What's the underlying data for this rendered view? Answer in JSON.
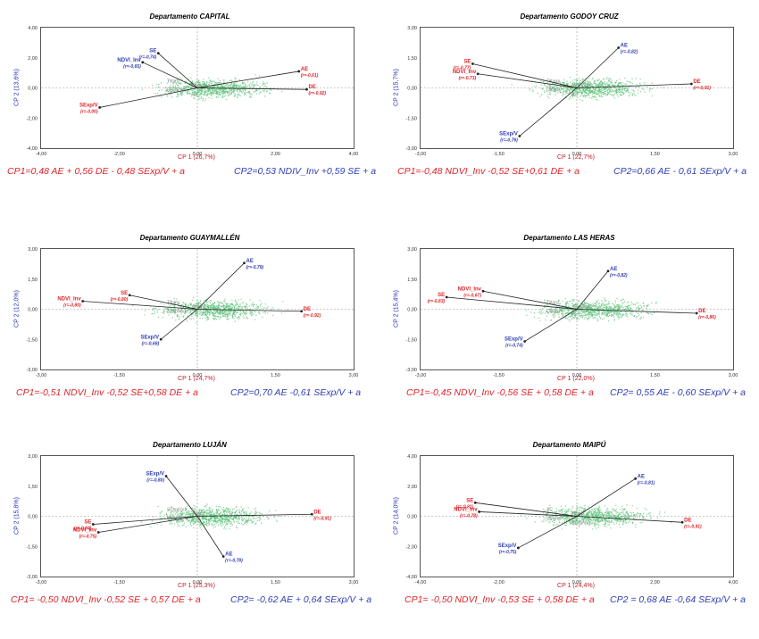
{
  "chart_data": [
    {
      "type": "scatter",
      "title": "Departamento CAPITAL",
      "xlabel": "CP 1 (26,7%)",
      "ylabel": "CP 2 (13,6%)",
      "xlim": [
        -4,
        4
      ],
      "ylim": [
        -4,
        4
      ],
      "xticks": [
        "-4,00",
        "-2,00",
        "0,00",
        "2,00",
        "4,00"
      ],
      "yticks": [
        "4,00",
        "2,00",
        "0,00",
        "-2,00",
        "-4,00"
      ],
      "vectors": [
        {
          "name": "AE",
          "corr": "(r=-0,61)",
          "x": 2.6,
          "y": 1.1,
          "color": "#e0242a"
        },
        {
          "name": "DE",
          "corr": "(r=-0,92)",
          "x": 2.8,
          "y": -0.1,
          "color": "#e0242a"
        },
        {
          "name": "SExp/V",
          "corr": "(r=-0,00)",
          "x": -2.5,
          "y": -1.3,
          "color": "#e0242a"
        },
        {
          "name": "NDVI_Inv",
          "corr": "(r=-0,65)",
          "x": -1.4,
          "y": 1.7,
          "color": "#2f3eb5"
        },
        {
          "name": "SE",
          "corr": "(r=-0,74)",
          "x": -1.0,
          "y": 2.3,
          "color": "#2f3eb5"
        }
      ],
      "minor_labels": [
        "Tiltanz",
        "Otilanz",
        "SExp/Vx1",
        "SE"
      ],
      "equation_cp1": "CP1=0,48 AE + 0,56 DE - 0,48 SExp/V + a",
      "equation_cp2": "CP2=0,53 NDIV_Inv +0,59 SE + a"
    },
    {
      "type": "scatter",
      "title": "Departamento GODOY CRUZ",
      "xlabel": "CP 1 (22,7%)",
      "ylabel": "CP 2 (15,7%)",
      "xlim": [
        -3,
        3
      ],
      "ylim": [
        -3,
        3
      ],
      "xticks": [
        "-3,00",
        "-1,50",
        "0,00",
        "1,50",
        "3,00"
      ],
      "yticks": [
        "3,00",
        "1,50",
        "0,00",
        "-1,50",
        "-3,00"
      ],
      "vectors": [
        {
          "name": "AE",
          "corr": "(r=-0,82)",
          "x": 0.8,
          "y": 2.0,
          "color": "#2f3eb5"
        },
        {
          "name": "DE",
          "corr": "(r=-0,91)",
          "x": 2.2,
          "y": 0.2,
          "color": "#e0242a"
        },
        {
          "name": "SE",
          "corr": "(r=-0,77)",
          "x": -2.0,
          "y": 1.2,
          "color": "#e0242a"
        },
        {
          "name": "NDVI_Inv",
          "corr": "(r=-0,73)",
          "x": -1.9,
          "y": 0.7,
          "color": "#e0242a"
        },
        {
          "name": "SExp/V",
          "corr": "(r=-0,76)",
          "x": -1.1,
          "y": -2.4,
          "color": "#2f3eb5"
        }
      ],
      "minor_labels": [
        "Tiltanz",
        "SExp/Vx1",
        "Otilanz",
        "AE"
      ],
      "equation_cp1": "CP1=-0,48 NDVI_Inv -0,52 SE+0,61 DE + a",
      "equation_cp2": "CP2=0,66 AE - 0,61 SExp/V + a"
    },
    {
      "type": "scatter",
      "title": "Departamento GUAYMALLÉN",
      "xlabel": "CP 1 (24,7%)",
      "ylabel": "CP 2 (12,0%)",
      "xlim": [
        -3,
        3
      ],
      "ylim": [
        -3,
        3
      ],
      "xticks": [
        "-3,00",
        "-1,50",
        "0,00",
        "1,50",
        "3,00"
      ],
      "yticks": [
        "3,00",
        "1,50",
        "0,00",
        "-1,50",
        "-3,00"
      ],
      "vectors": [
        {
          "name": "AE",
          "corr": "(r=-0,79)",
          "x": 0.9,
          "y": 2.3,
          "color": "#2f3eb5"
        },
        {
          "name": "DE",
          "corr": "(r=-0,92)",
          "x": 2.0,
          "y": -0.1,
          "color": "#e0242a"
        },
        {
          "name": "SE",
          "corr": "(r=-0,80)",
          "x": -1.3,
          "y": 0.7,
          "color": "#e0242a"
        },
        {
          "name": "NDVI_Inv",
          "corr": "(r=-0,80)",
          "x": -2.2,
          "y": 0.4,
          "color": "#e0242a"
        },
        {
          "name": "SExp/V",
          "corr": "(r=-0,68)",
          "x": -0.7,
          "y": -1.5,
          "color": "#2f3eb5"
        }
      ],
      "minor_labels": [
        "Tiltanz",
        "Otilanz",
        "SExp/Vx1"
      ],
      "equation_cp1": "CP1=-0,51 NDVI_Inv -0,52 SE+0,58 DE + a",
      "equation_cp2": "CP2=0,70 AE -0,61 SExp/V + a"
    },
    {
      "type": "scatter",
      "title": "Departamento LAS HERAS",
      "xlabel": "CP 1 (22,0%)",
      "ylabel": "CP 2 (15,4%)",
      "xlim": [
        -3,
        3
      ],
      "ylim": [
        -3,
        3
      ],
      "xticks": [
        "-3,00",
        "-1,50",
        "0,00",
        "1,50",
        "3,00"
      ],
      "yticks": [
        "3,00",
        "1,50",
        "0,00",
        "-1,50",
        "-3,00"
      ],
      "vectors": [
        {
          "name": "AE",
          "corr": "(r=-0,82)",
          "x": 0.6,
          "y": 1.9,
          "color": "#2f3eb5"
        },
        {
          "name": "DE",
          "corr": "(r=-0,86)",
          "x": 2.3,
          "y": -0.2,
          "color": "#e0242a"
        },
        {
          "name": "NDVI_Inv",
          "corr": "(r=-0,67)",
          "x": -1.8,
          "y": 0.9,
          "color": "#e0242a"
        },
        {
          "name": "SE",
          "corr": "(r=-0,83)",
          "x": -2.5,
          "y": 0.6,
          "color": "#e0242a"
        },
        {
          "name": "SExp/V",
          "corr": "(r=-0,74)",
          "x": -1.0,
          "y": -1.6,
          "color": "#2f3eb5"
        }
      ],
      "minor_labels": [
        "Tiltanz",
        "SExp/Vx1",
        "Otilanz",
        "QE"
      ],
      "equation_cp1": "CP1=-0,45 NDVI_Inv -0,56 SE + 0,58 DE + a",
      "equation_cp2": "CP2= 0,55 AE - 0,60 SExp/V + a"
    },
    {
      "type": "scatter",
      "title": "Departamento LUJÁN",
      "xlabel": "CP 1 (25,3%)",
      "ylabel": "CP 2 (15,8%)",
      "xlim": [
        -3,
        3
      ],
      "ylim": [
        -3,
        3
      ],
      "xticks": [
        "-3,00",
        "-1,50",
        "0,00",
        "1,50",
        "3,00"
      ],
      "yticks": [
        "3,00",
        "1,50",
        "0,00",
        "-1,50",
        "-3,00"
      ],
      "vectors": [
        {
          "name": "SExp/V",
          "corr": "(r=-0,80)",
          "x": -0.6,
          "y": 2.0,
          "color": "#2f3eb5"
        },
        {
          "name": "DE",
          "corr": "(r=-0,91)",
          "x": 2.2,
          "y": 0.1,
          "color": "#e0242a"
        },
        {
          "name": "SE",
          "corr": "(r=-0,84)",
          "x": -2.0,
          "y": -0.4,
          "color": "#e0242a"
        },
        {
          "name": "NDVI_Inv",
          "corr": "(r=-0,75)",
          "x": -1.9,
          "y": -0.8,
          "color": "#e0242a"
        },
        {
          "name": "AE",
          "corr": "(r=-0,78)",
          "x": 0.5,
          "y": -2.0,
          "color": "#2f3eb5"
        }
      ],
      "minor_labels": [
        "SExp/Vx1",
        "Tiltanz",
        "Otilanz"
      ],
      "equation_cp1": "CP1= -0,50 NDVI_Inv -0,52 SE + 0,57 DE + a",
      "equation_cp2": "CP2= -0,62 AE + 0,64 SExp/V + a"
    },
    {
      "type": "scatter",
      "title": "Departamento MAIPÚ",
      "xlabel": "CP 1 (24,4%)",
      "ylabel": "CP 2 (14,0%)",
      "xlim": [
        -4,
        4
      ],
      "ylim": [
        -4,
        4
      ],
      "xticks": [
        "-4,00",
        "-2,00",
        "0,00",
        "2,00",
        "4,00"
      ],
      "yticks": [
        "4,00",
        "2,00",
        "0,00",
        "-2,00",
        "-4,00"
      ],
      "vectors": [
        {
          "name": "AE",
          "corr": "(r=-0,81)",
          "x": 1.5,
          "y": 2.5,
          "color": "#2f3eb5"
        },
        {
          "name": "DE",
          "corr": "(r=-0,91)",
          "x": 2.7,
          "y": -0.4,
          "color": "#e0242a"
        },
        {
          "name": "SE",
          "corr": "(r=-0,81)",
          "x": -2.6,
          "y": 0.9,
          "color": "#e0242a"
        },
        {
          "name": "NDVI_Inv",
          "corr": "(r=-0,78)",
          "x": -2.5,
          "y": 0.3,
          "color": "#e0242a"
        },
        {
          "name": "SExp/V",
          "corr": "(r=-0,75)",
          "x": -1.5,
          "y": -2.1,
          "color": "#2f3eb5"
        }
      ],
      "minor_labels": [
        "AC",
        "Tiltanz",
        "Otilanz",
        "SExp/Vx1"
      ],
      "equation_cp1": "CP1= -0,50 NDVI_Inv -0,53 SE + 0,58 DE + a",
      "equation_cp2": "CP2 = 0,68 AE -0,64 SExp/V + a"
    }
  ]
}
